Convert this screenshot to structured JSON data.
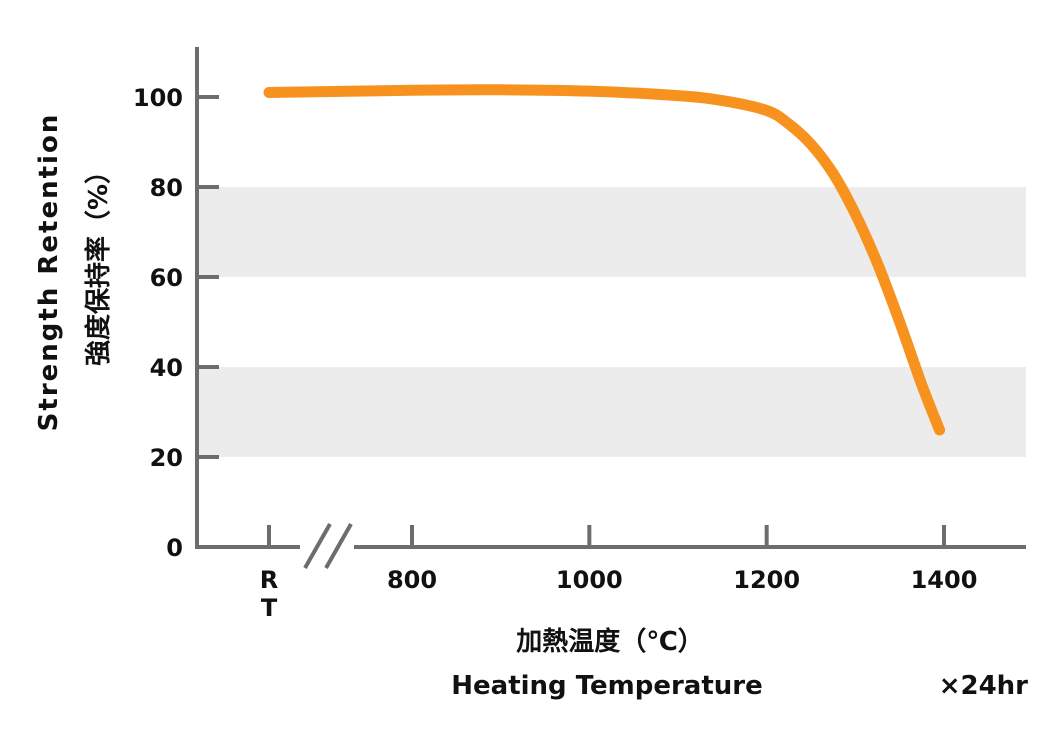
{
  "chart_data": {
    "type": "line",
    "title": "",
    "xlabel_jp": "加熱温度（℃）",
    "xlabel_en": "Heating Temperature",
    "ylabel_en": "Strength Retention",
    "ylabel_jp": "強度保持率（%）",
    "note": "×24hr",
    "x_ticks": [
      "RT",
      "800",
      "1000",
      "1200",
      "1400"
    ],
    "rt_label_lines": [
      "R",
      "T"
    ],
    "y_ticks": [
      "0",
      "20",
      "40",
      "60",
      "80",
      "100"
    ],
    "ylim": [
      0,
      110
    ],
    "xlim": [
      600,
      1490
    ],
    "axis_break": true,
    "grid_bands": [
      [
        20,
        40
      ],
      [
        60,
        80
      ]
    ],
    "series": [
      {
        "color": "#F7921E",
        "x": [
          "RT",
          800,
          900,
          1000,
          1100,
          1150,
          1200,
          1225,
          1250,
          1275,
          1300,
          1325,
          1350,
          1375,
          1395
        ],
        "y": [
          101,
          101.5,
          101.6,
          101.3,
          100.3,
          99.2,
          97,
          94,
          89.5,
          83,
          74,
          63,
          50,
          36,
          26
        ]
      }
    ]
  }
}
